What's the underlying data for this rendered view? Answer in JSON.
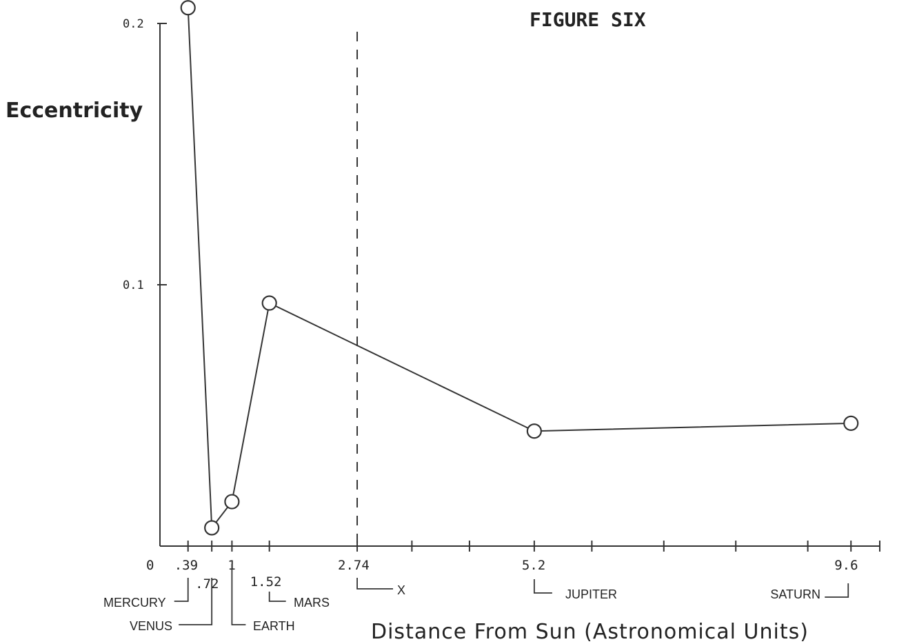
{
  "chart_data": {
    "type": "line",
    "title": "FIGURE SIX",
    "xlabel": "Distance From Sun (Astronomical Units)",
    "ylabel": "Eccentricity",
    "xlim": [
      0,
      10
    ],
    "ylim": [
      0,
      0.2
    ],
    "grid": false,
    "y_ticks": [
      {
        "value": 0.2,
        "label": "0.2"
      },
      {
        "value": 0.1,
        "label": "0.1"
      }
    ],
    "x_zero_label": "0",
    "x_minor_ticks": [
      0.39,
      0.72,
      1,
      1.52,
      2.74,
      3.5,
      4.3,
      5.2,
      6.0,
      7.0,
      8.0,
      9.0,
      9.6,
      10.0
    ],
    "points": [
      {
        "name": "MERCURY",
        "x": 0.39,
        "x_label": ".39",
        "y": 0.206
      },
      {
        "name": "VENUS",
        "x": 0.72,
        "x_label": ".72",
        "y": 0.007
      },
      {
        "name": "EARTH",
        "x": 1,
        "x_label": "1",
        "y": 0.017
      },
      {
        "name": "MARS",
        "x": 1.52,
        "x_label": "1.52",
        "y": 0.093
      },
      {
        "name": "JUPITER",
        "x": 5.2,
        "x_label": "5.2",
        "y": 0.044
      },
      {
        "name": "SATURN",
        "x": 9.6,
        "x_label": "9.6",
        "y": 0.047
      }
    ],
    "marker_line": {
      "x": 2.74,
      "x_label": "2.74",
      "name": "X"
    }
  }
}
